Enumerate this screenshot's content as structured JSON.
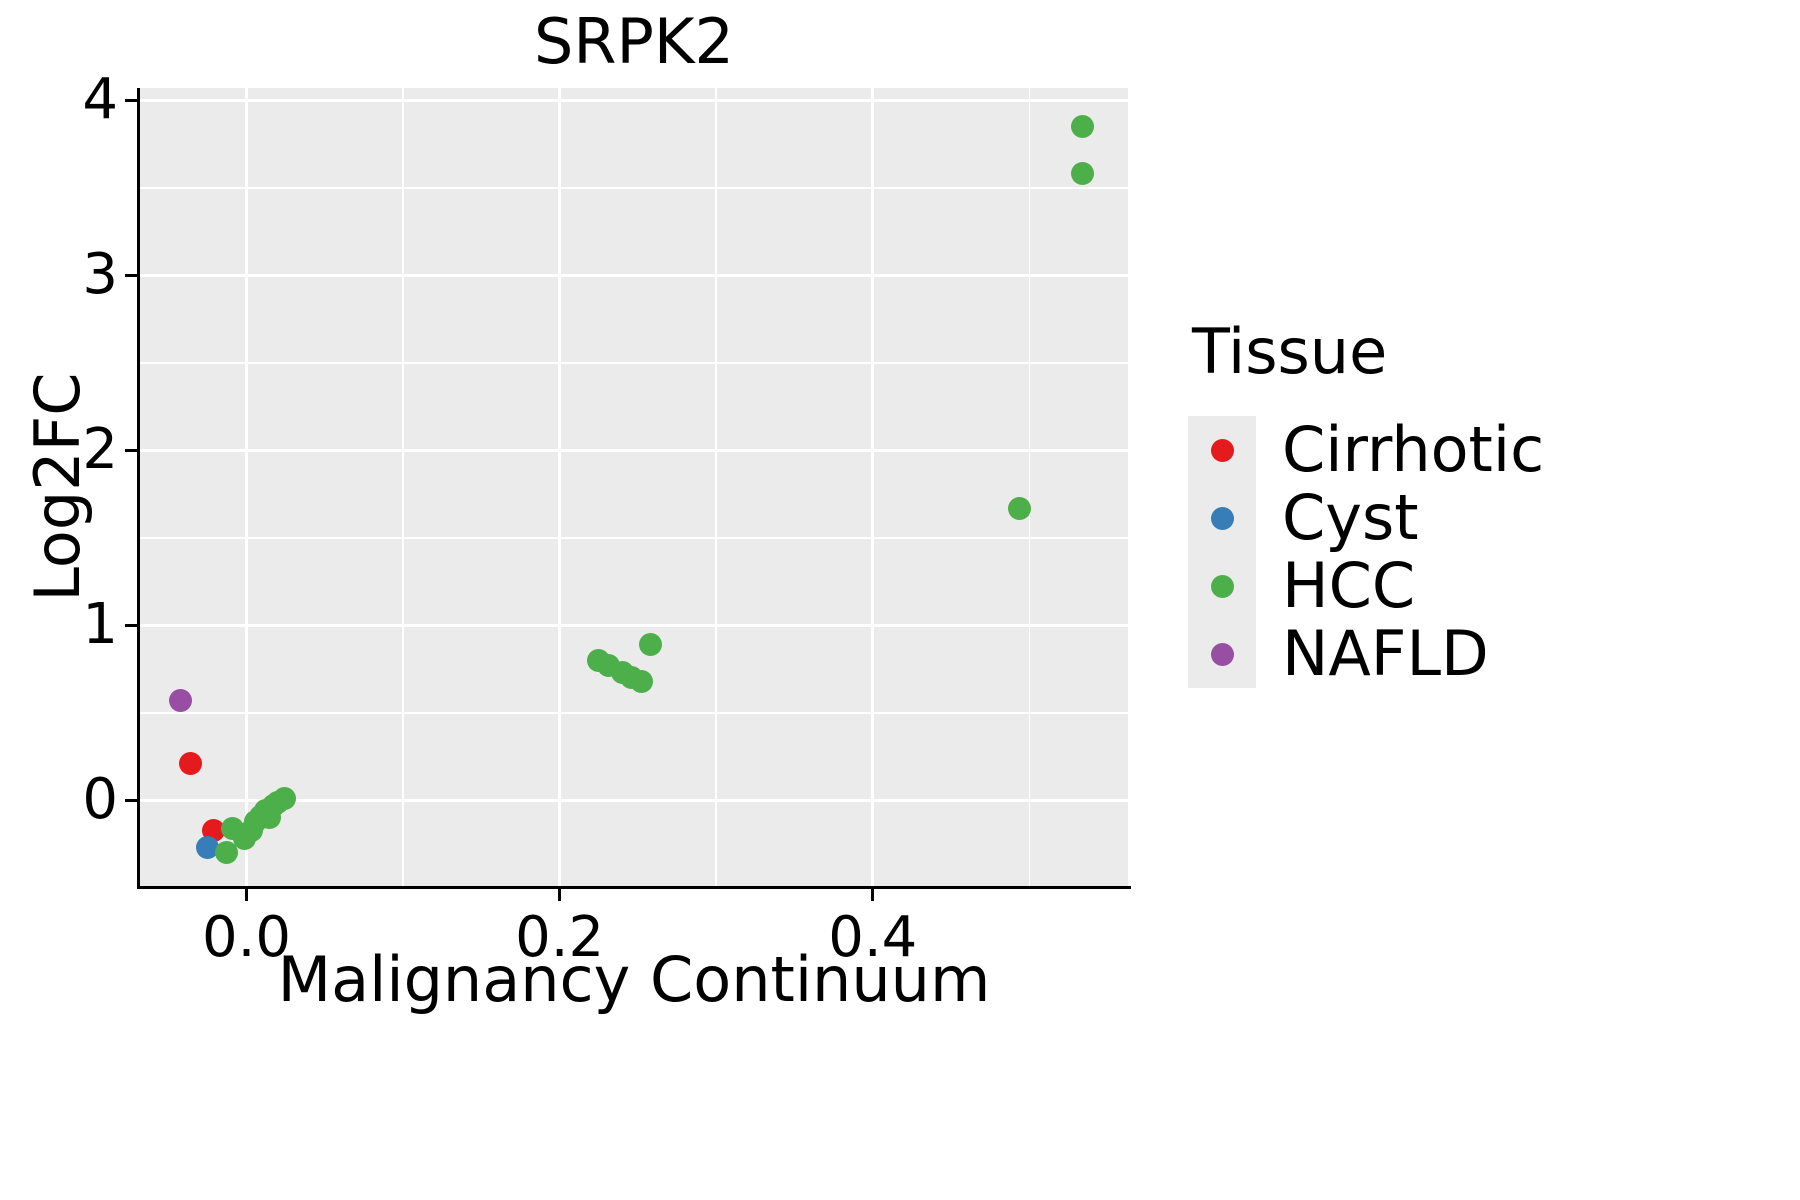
{
  "chart_data": {
    "type": "scatter",
    "title": "SRPK2",
    "xlabel": "Malignancy Continuum",
    "ylabel": "Log2FC",
    "xlim": [
      -0.068,
      0.563
    ],
    "ylim": [
      -0.49,
      4.07
    ],
    "grid": true,
    "panel_bg": "#EBEBEB",
    "grid_color": "#FFFFFF",
    "x_ticks": {
      "values": [
        0.0,
        0.2,
        0.4
      ],
      "labels": [
        "0.0",
        "0.2",
        "0.4"
      ]
    },
    "y_ticks": {
      "values": [
        0,
        1,
        2,
        3,
        4
      ],
      "labels": [
        "0",
        "1",
        "2",
        "3",
        "4"
      ]
    },
    "x_minor": [
      0.1,
      0.3,
      0.5
    ],
    "y_minor": [
      0.5,
      1.5,
      2.5,
      3.5
    ],
    "legend_title": "Tissue",
    "legend_position": "right",
    "series": [
      {
        "name": "Cirrhotic",
        "color": "#E41A1C",
        "points": [
          [
            -0.036,
            0.21
          ],
          [
            -0.021,
            -0.17
          ]
        ]
      },
      {
        "name": "Cyst",
        "color": "#377EB8",
        "points": [
          [
            -0.025,
            -0.27
          ]
        ]
      },
      {
        "name": "HCC",
        "color": "#4DAF4A",
        "points": [
          [
            -0.013,
            -0.3
          ],
          [
            -0.009,
            -0.16
          ],
          [
            -0.001,
            -0.22
          ],
          [
            0.003,
            -0.17
          ],
          [
            0.006,
            -0.12
          ],
          [
            0.009,
            -0.09
          ],
          [
            0.012,
            -0.06
          ],
          [
            0.015,
            -0.1
          ],
          [
            0.017,
            -0.03
          ],
          [
            0.02,
            -0.01
          ],
          [
            0.024,
            0.01
          ],
          [
            0.225,
            0.8
          ],
          [
            0.231,
            0.77
          ],
          [
            0.24,
            0.73
          ],
          [
            0.246,
            0.7
          ],
          [
            0.252,
            0.68
          ],
          [
            0.258,
            0.89
          ],
          [
            0.494,
            1.67
          ],
          [
            0.534,
            3.85
          ],
          [
            0.534,
            3.58
          ]
        ]
      },
      {
        "name": "NAFLD",
        "color": "#984EA3",
        "points": [
          [
            -0.042,
            0.57
          ]
        ]
      }
    ]
  }
}
